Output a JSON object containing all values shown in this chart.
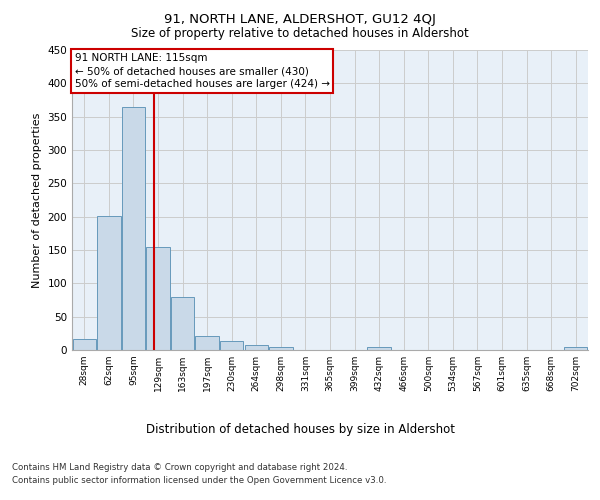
{
  "title": "91, NORTH LANE, ALDERSHOT, GU12 4QJ",
  "subtitle": "Size of property relative to detached houses in Aldershot",
  "xlabel": "Distribution of detached houses by size in Aldershot",
  "ylabel": "Number of detached properties",
  "footer_line1": "Contains HM Land Registry data © Crown copyright and database right 2024.",
  "footer_line2": "Contains public sector information licensed under the Open Government Licence v3.0.",
  "bin_labels": [
    "28sqm",
    "62sqm",
    "95sqm",
    "129sqm",
    "163sqm",
    "197sqm",
    "230sqm",
    "264sqm",
    "298sqm",
    "331sqm",
    "365sqm",
    "399sqm",
    "432sqm",
    "466sqm",
    "500sqm",
    "534sqm",
    "567sqm",
    "601sqm",
    "635sqm",
    "668sqm",
    "702sqm"
  ],
  "bar_values": [
    17,
    201,
    365,
    154,
    79,
    21,
    14,
    8,
    5,
    0,
    0,
    0,
    5,
    0,
    0,
    0,
    0,
    0,
    0,
    0,
    5
  ],
  "bar_color": "#c9d9e8",
  "bar_edge_color": "#6699bb",
  "grid_color": "#cccccc",
  "background_color": "#e8f0f8",
  "vline_x": 2.85,
  "vline_color": "#cc0000",
  "annotation_box_text": "91 NORTH LANE: 115sqm\n← 50% of detached houses are smaller (430)\n50% of semi-detached houses are larger (424) →",
  "annotation_box_color": "#cc0000",
  "ylim": [
    0,
    450
  ],
  "yticks": [
    0,
    50,
    100,
    150,
    200,
    250,
    300,
    350,
    400,
    450
  ]
}
